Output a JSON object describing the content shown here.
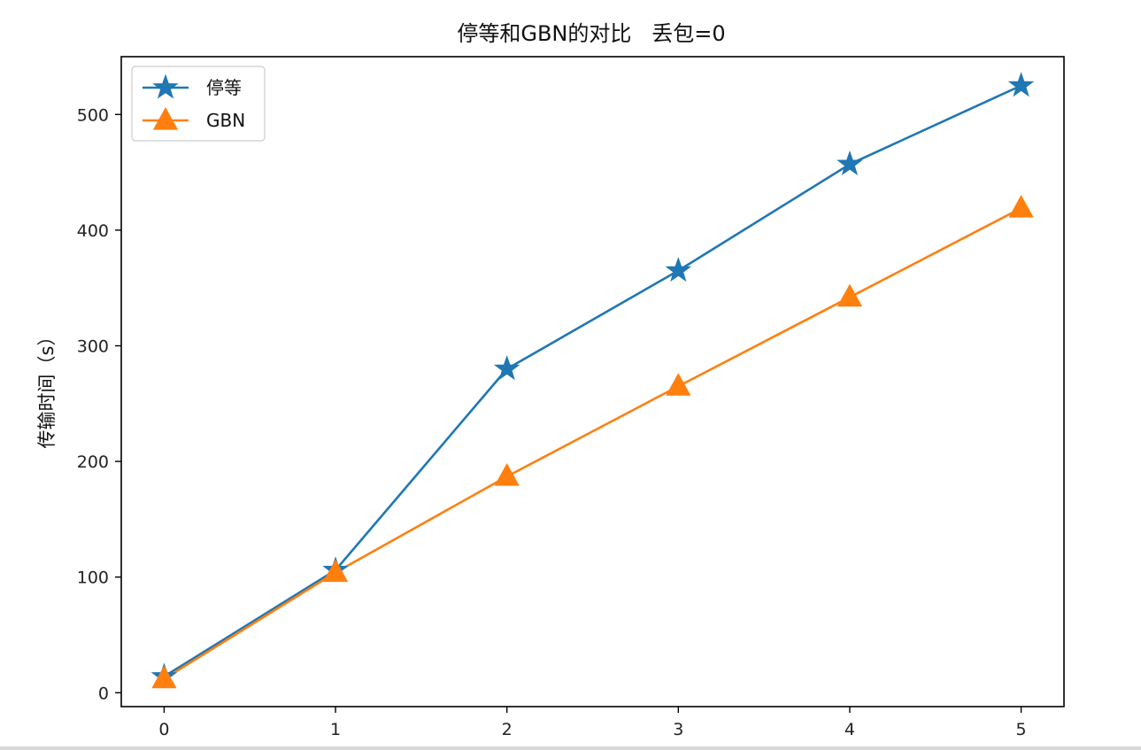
{
  "chart_data": {
    "type": "line",
    "title": "停等和GBN的对比   丢包=0",
    "xlabel": "",
    "ylabel": "传输时间（s）",
    "x": [
      0,
      1,
      2,
      3,
      4,
      5
    ],
    "xlim": [
      -0.25,
      5.25
    ],
    "ylim": [
      -12,
      550
    ],
    "xticks": [
      0,
      1,
      2,
      3,
      4,
      5
    ],
    "yticks": [
      0,
      100,
      200,
      300,
      400,
      500
    ],
    "grid": false,
    "legend_position": "top-left",
    "series": [
      {
        "name": "停等",
        "values": [
          14,
          106,
          280,
          365,
          457,
          525
        ],
        "color": "#1f77b4",
        "marker": "star-icon"
      },
      {
        "name": "GBN",
        "values": [
          12,
          104,
          187,
          265,
          342,
          419
        ],
        "color": "#ff7f0e",
        "marker": "triangle-icon"
      }
    ]
  }
}
